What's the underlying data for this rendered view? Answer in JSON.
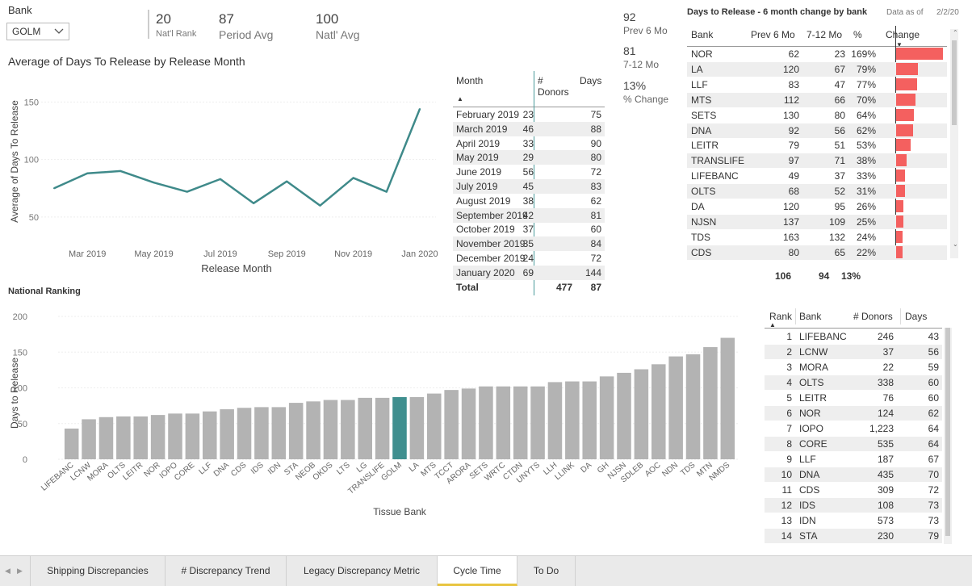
{
  "slicer": {
    "title": "Bank",
    "selected": "GOLM"
  },
  "kpis": [
    {
      "value": "20",
      "label": "Nat'l Rank"
    },
    {
      "value": "87",
      "label": "Period Avg"
    },
    {
      "value": "100",
      "label": "Natl' Avg"
    }
  ],
  "side_kpis": [
    {
      "value": "92",
      "label": "Prev 6 Mo"
    },
    {
      "value": "81",
      "label": "7-12 Mo"
    },
    {
      "value": "13%",
      "label": "% Change"
    }
  ],
  "line_chart_title": "Average of Days To Release by Release Month",
  "chart_data": [
    {
      "type": "line",
      "title": "Average of Days To Release by Release Month",
      "xlabel": "Release Month",
      "ylabel": "Average of Days To Release",
      "x": [
        "Feb 2019",
        "Mar 2019",
        "Apr 2019",
        "May 2019",
        "Jun 2019",
        "Jul 2019",
        "Aug 2019",
        "Sep 2019",
        "Oct 2019",
        "Nov 2019",
        "Dec 2019",
        "Jan 2020"
      ],
      "values": [
        75,
        88,
        90,
        80,
        72,
        83,
        62,
        81,
        60,
        84,
        72,
        144
      ],
      "xticks": [
        "Mar 2019",
        "May 2019",
        "Jul 2019",
        "Sep 2019",
        "Nov 2019",
        "Jan 2020"
      ],
      "yticks": [
        50,
        100,
        150
      ],
      "ylim": [
        38,
        158
      ],
      "color": "#3f8a8a"
    },
    {
      "type": "bar",
      "title": "National Ranking",
      "xlabel": "Tissue Bank",
      "ylabel": "Days to Release",
      "yticks": [
        0,
        50,
        100,
        150,
        200
      ],
      "ylim": [
        0,
        200
      ],
      "highlight": "GOLM",
      "highlight_color": "#3f8f8f",
      "bar_color": "#b3b3b3",
      "categories": [
        "LIFEBANC",
        "LCNW",
        "MORA",
        "OLTS",
        "LEITR",
        "NOR",
        "IOPO",
        "CORE",
        "LLF",
        "DNA",
        "CDS",
        "IDS",
        "IDN",
        "STA",
        "NEOB",
        "OKDS",
        "LTS",
        "LG",
        "TRANSLIFE",
        "GOLM",
        "LA",
        "MTS",
        "TCCT",
        "ARORA",
        "SETS",
        "WRTC",
        "CTDN",
        "UNYTS",
        "LLH",
        "LLINK",
        "DA",
        "GH",
        "NJSN",
        "SDLEB",
        "AOC",
        "NDN",
        "TDS",
        "MTN",
        "NMDS"
      ],
      "values": [
        43,
        56,
        59,
        60,
        60,
        62,
        64,
        64,
        67,
        70,
        72,
        73,
        73,
        79,
        81,
        83,
        83,
        86,
        86,
        87,
        87,
        92,
        97,
        99,
        102,
        102,
        102,
        102,
        108,
        109,
        109,
        116,
        121,
        126,
        133,
        144,
        147,
        157,
        170
      ]
    }
  ],
  "month_table": {
    "headers": {
      "month": "Month",
      "donors_1": "#",
      "donors_2": "Donors",
      "days": "Days"
    },
    "rows": [
      {
        "month": "February 2019",
        "donors": "23",
        "days": "75"
      },
      {
        "month": "March 2019",
        "donors": "46",
        "days": "88"
      },
      {
        "month": "April 2019",
        "donors": "33",
        "days": "90"
      },
      {
        "month": "May 2019",
        "donors": "29",
        "days": "80"
      },
      {
        "month": "June 2019",
        "donors": "56",
        "days": "72"
      },
      {
        "month": "July 2019",
        "donors": "45",
        "days": "83"
      },
      {
        "month": "August 2019",
        "donors": "38",
        "days": "62"
      },
      {
        "month": "September 2019",
        "donors": "42",
        "days": "81"
      },
      {
        "month": "October 2019",
        "donors": "37",
        "days": "60"
      },
      {
        "month": "November 2019",
        "donors": "35",
        "days": "84"
      },
      {
        "month": "December 2019",
        "donors": "24",
        "days": "72"
      },
      {
        "month": "January 2020",
        "donors": "69",
        "days": "144"
      }
    ],
    "total": {
      "label": "Total",
      "donors": "477",
      "days": "87"
    }
  },
  "change_table": {
    "title": "Days to Release - 6 month change by bank",
    "data_as_of_label": "Data as of",
    "data_as_of_value": "2/2/20",
    "headers": {
      "bank": "Bank",
      "prev": "Prev 6 Mo",
      "mid": "7-12 Mo",
      "pct": "%",
      "change": "Change"
    },
    "rows": [
      {
        "bank": "NOR",
        "prev": "62",
        "mid": "23",
        "pct": "169%",
        "change": 169
      },
      {
        "bank": "LA",
        "prev": "120",
        "mid": "67",
        "pct": "79%",
        "change": 79
      },
      {
        "bank": "LLF",
        "prev": "83",
        "mid": "47",
        "pct": "77%",
        "change": 77
      },
      {
        "bank": "MTS",
        "prev": "112",
        "mid": "66",
        "pct": "70%",
        "change": 70
      },
      {
        "bank": "SETS",
        "prev": "130",
        "mid": "80",
        "pct": "64%",
        "change": 64
      },
      {
        "bank": "DNA",
        "prev": "92",
        "mid": "56",
        "pct": "62%",
        "change": 62
      },
      {
        "bank": "LEITR",
        "prev": "79",
        "mid": "51",
        "pct": "53%",
        "change": 53
      },
      {
        "bank": "TRANSLIFE",
        "prev": "97",
        "mid": "71",
        "pct": "38%",
        "change": 38
      },
      {
        "bank": "LIFEBANC",
        "prev": "49",
        "mid": "37",
        "pct": "33%",
        "change": 33
      },
      {
        "bank": "OLTS",
        "prev": "68",
        "mid": "52",
        "pct": "31%",
        "change": 31
      },
      {
        "bank": "DA",
        "prev": "120",
        "mid": "95",
        "pct": "26%",
        "change": 26
      },
      {
        "bank": "NJSN",
        "prev": "137",
        "mid": "109",
        "pct": "25%",
        "change": 25
      },
      {
        "bank": "TDS",
        "prev": "163",
        "mid": "132",
        "pct": "24%",
        "change": 24
      },
      {
        "bank": "CDS",
        "prev": "80",
        "mid": "65",
        "pct": "22%",
        "change": 22
      }
    ],
    "bar_color": "#f4605f",
    "total": {
      "prev": "106",
      "mid": "94",
      "pct": "13%"
    }
  },
  "ranking_title": "National Ranking",
  "rank_table": {
    "headers": {
      "rank": "Rank",
      "bank": "Bank",
      "donors": "# Donors",
      "days": "Days"
    },
    "rows": [
      {
        "rank": "1",
        "bank": "LIFEBANC",
        "donors": "246",
        "days": "43"
      },
      {
        "rank": "2",
        "bank": "LCNW",
        "donors": "37",
        "days": "56"
      },
      {
        "rank": "3",
        "bank": "MORA",
        "donors": "22",
        "days": "59"
      },
      {
        "rank": "4",
        "bank": "OLTS",
        "donors": "338",
        "days": "60"
      },
      {
        "rank": "5",
        "bank": "LEITR",
        "donors": "76",
        "days": "60"
      },
      {
        "rank": "6",
        "bank": "NOR",
        "donors": "124",
        "days": "62"
      },
      {
        "rank": "7",
        "bank": "IOPO",
        "donors": "1,223",
        "days": "64"
      },
      {
        "rank": "8",
        "bank": "CORE",
        "donors": "535",
        "days": "64"
      },
      {
        "rank": "9",
        "bank": "LLF",
        "donors": "187",
        "days": "67"
      },
      {
        "rank": "10",
        "bank": "DNA",
        "donors": "435",
        "days": "70"
      },
      {
        "rank": "11",
        "bank": "CDS",
        "donors": "309",
        "days": "72"
      },
      {
        "rank": "12",
        "bank": "IDS",
        "donors": "108",
        "days": "73"
      },
      {
        "rank": "13",
        "bank": "IDN",
        "donors": "573",
        "days": "73"
      },
      {
        "rank": "14",
        "bank": "STA",
        "donors": "230",
        "days": "79"
      }
    ]
  },
  "tabs": [
    {
      "label": "Shipping Discrepancies",
      "active": false
    },
    {
      "label": "# Discrepancy Trend",
      "active": false
    },
    {
      "label": "Legacy Discrepancy Metric",
      "active": false
    },
    {
      "label": "Cycle Time",
      "active": true
    },
    {
      "label": "To Do",
      "active": false
    }
  ],
  "colors": {
    "accent": "#3f8a8a",
    "change_bar": "#f4605f",
    "active_tab": "#e8c440"
  }
}
